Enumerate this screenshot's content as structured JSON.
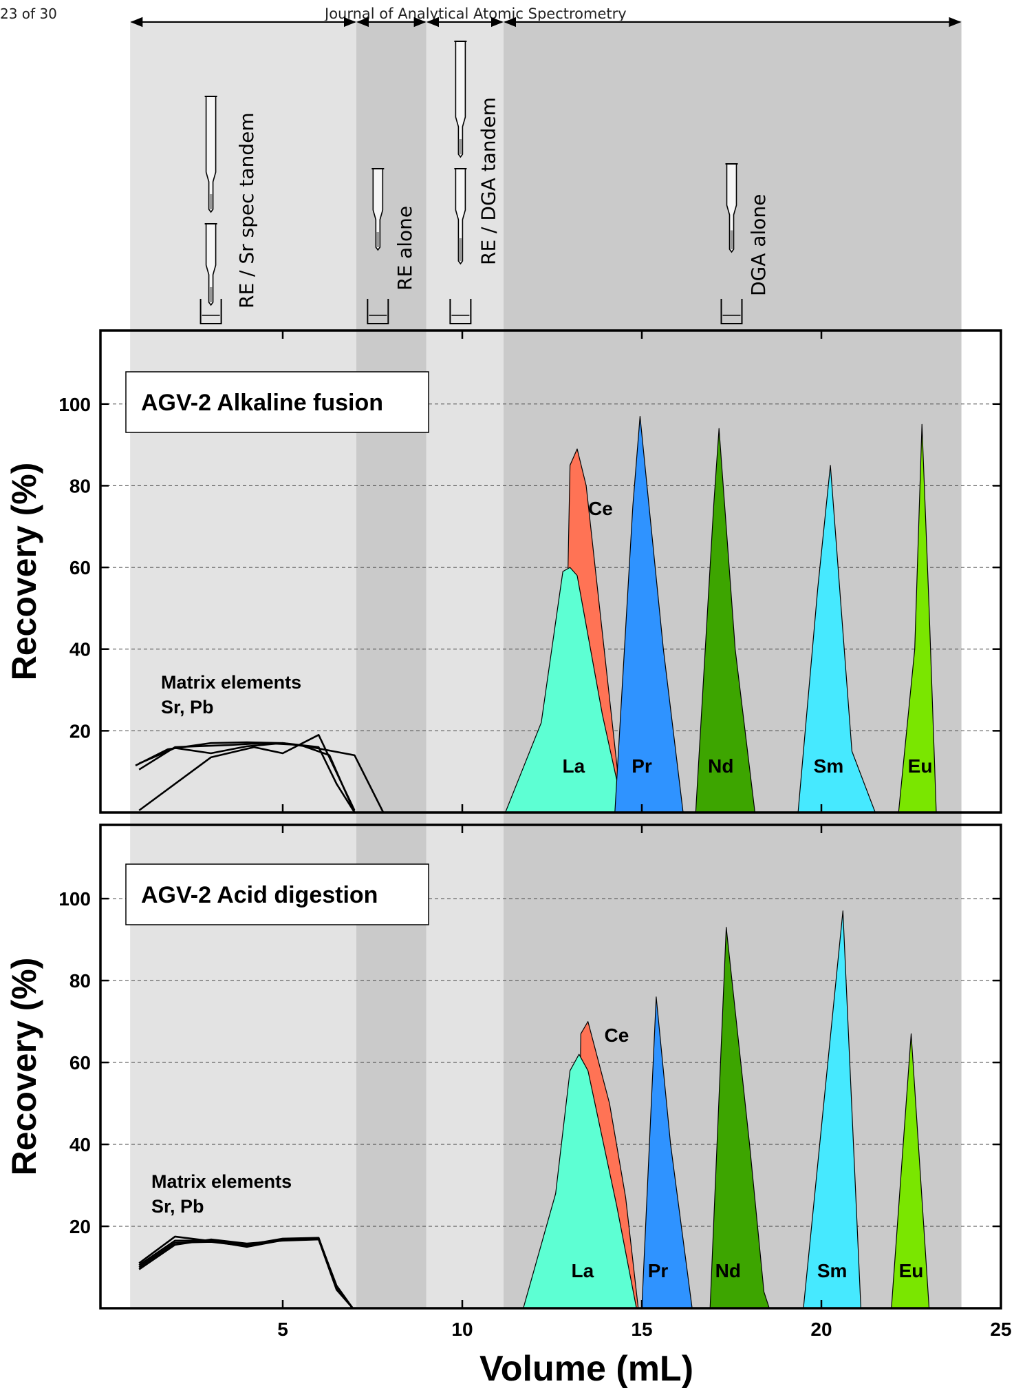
{
  "header": {
    "page_label": "23 of 30",
    "journal": "Journal of Analytical Atomic Spectrometry"
  },
  "colors": {
    "Ce": "#ff7355",
    "La": "#5dffd3",
    "Pr": "#2f93ff",
    "Nd": "#3da500",
    "Sm": "#46e9ff",
    "Eu": "#7ae600",
    "stage_RE_Sr_spec": "#e3e3e3",
    "stage_RE_alone": "#cacaca",
    "stage_RE_DGA": "#e3e3e3",
    "stage_DGA_alone": "#cacaca"
  },
  "stages": [
    {
      "label": "RE / Sr spec tandem",
      "start": 0.75,
      "end": 7.05,
      "columns": 2
    },
    {
      "label": "RE alone",
      "start": 7.05,
      "end": 9.0,
      "columns": 1
    },
    {
      "label": "RE / DGA tandem",
      "start": 9.0,
      "end": 11.15,
      "columns": 2
    },
    {
      "label": "DGA alone",
      "start": 11.15,
      "end": 23.9,
      "columns": 1
    }
  ],
  "chart_data": [
    {
      "type": "area",
      "title": "AGV-2 Alkaline fusion",
      "xlabel": "Volume (mL)",
      "ylabel": "Recovery (%)",
      "xlim": [
        0,
        25
      ],
      "ylim": [
        0,
        118
      ],
      "xticks": [
        5,
        10,
        15,
        20,
        25
      ],
      "yticks": [
        20,
        40,
        60,
        80,
        100
      ],
      "grid": true,
      "annotation": [
        "Matrix elements",
        "Sr, Pb"
      ],
      "series": [
        {
          "name": "Ce",
          "x": [
            12.5,
            12.9,
            13.0,
            13.2,
            13.45,
            14.45
          ],
          "y": [
            0,
            40,
            85,
            89,
            80,
            0
          ]
        },
        {
          "name": "La",
          "x": [
            11.2,
            12.2,
            12.8,
            13.0,
            13.2,
            13.9,
            14.5
          ],
          "y": [
            0,
            22,
            59,
            60,
            58,
            24,
            0
          ]
        },
        {
          "name": "Pr",
          "x": [
            14.25,
            14.75,
            14.95,
            15.6,
            16.15
          ],
          "y": [
            0,
            75,
            97,
            40,
            0
          ]
        },
        {
          "name": "Nd",
          "x": [
            16.5,
            17.0,
            17.15,
            17.6,
            18.15
          ],
          "y": [
            0,
            75,
            94,
            40,
            0
          ]
        },
        {
          "name": "Sm",
          "x": [
            19.35,
            19.9,
            20.25,
            20.85,
            21.5
          ],
          "y": [
            0,
            55,
            85,
            15,
            0
          ]
        },
        {
          "name": "Eu",
          "x": [
            22.15,
            22.6,
            22.8,
            23.0,
            23.2
          ],
          "y": [
            0,
            40,
            95,
            50,
            0
          ]
        },
        {
          "name": "Matrix 1",
          "x": [
            0.9,
            1.8,
            3.0,
            4.0,
            5.0,
            6.0,
            6.5,
            7.0
          ],
          "y": [
            11.5,
            15.5,
            17.0,
            17.2,
            17.0,
            16.0,
            7.0,
            0
          ]
        },
        {
          "name": "Matrix 2",
          "x": [
            1.0,
            2.0,
            3.0,
            4.0,
            5.0,
            5.8,
            7.0,
            7.8
          ],
          "y": [
            12.0,
            15.8,
            14.5,
            16.2,
            17.0,
            16.0,
            14.0,
            0
          ]
        },
        {
          "name": "Matrix 3",
          "x": [
            1.0,
            3.0,
            4.2,
            5.0,
            6.0,
            7.0
          ],
          "y": [
            0.5,
            13.5,
            16.0,
            14.5,
            19.0,
            0.5
          ]
        },
        {
          "name": "Matrix 4",
          "x": [
            1.0,
            2.0,
            3.5,
            4.5,
            5.5,
            6.3,
            7.0
          ],
          "y": [
            10.5,
            16.0,
            16.5,
            17.0,
            16.5,
            14.0,
            0
          ]
        }
      ]
    },
    {
      "type": "area",
      "title": "AGV-2 Acid digestion",
      "xlabel": "Volume (mL)",
      "ylabel": "Recovery (%)",
      "xlim": [
        0,
        25
      ],
      "ylim": [
        0,
        118
      ],
      "xticks": [
        5,
        10,
        15,
        20,
        25
      ],
      "yticks": [
        20,
        40,
        60,
        80,
        100
      ],
      "grid": true,
      "annotation": [
        "Matrix elements",
        "Sr, Pb"
      ],
      "series": [
        {
          "name": "Ce",
          "x": [
            13.2,
            13.3,
            13.5,
            14.1,
            14.55,
            14.9
          ],
          "y": [
            0,
            67,
            70,
            50,
            27,
            0
          ]
        },
        {
          "name": "La",
          "x": [
            11.7,
            12.6,
            13.0,
            13.25,
            13.5,
            14.3,
            14.85
          ],
          "y": [
            0,
            28,
            58,
            62,
            58,
            25,
            0
          ]
        },
        {
          "name": "Pr",
          "x": [
            15.0,
            15.4,
            15.8,
            16.4
          ],
          "y": [
            0,
            76,
            40,
            0
          ]
        },
        {
          "name": "Nd",
          "x": [
            16.9,
            17.35,
            18.0,
            18.4,
            18.55
          ],
          "y": [
            0,
            93,
            40,
            4,
            0
          ]
        },
        {
          "name": "Sm",
          "x": [
            19.5,
            20.6,
            21.1
          ],
          "y": [
            0,
            97,
            0
          ]
        },
        {
          "name": "Eu",
          "x": [
            21.95,
            22.5,
            23.0
          ],
          "y": [
            0,
            67,
            0
          ]
        },
        {
          "name": "Matrix 1",
          "x": [
            1.0,
            2.0,
            3.0,
            4.0,
            5.0,
            6.0,
            6.5,
            6.95
          ],
          "y": [
            10.5,
            16.5,
            16.5,
            15.5,
            17.0,
            17.2,
            5.0,
            0
          ]
        },
        {
          "name": "Matrix 2",
          "x": [
            1.0,
            2.0,
            3.0,
            4.0,
            5.0,
            6.0,
            6.5,
            6.95
          ],
          "y": [
            10.0,
            16.0,
            16.2,
            15.2,
            16.8,
            17.0,
            5.5,
            0
          ]
        },
        {
          "name": "Matrix 3",
          "x": [
            1.0,
            2.0,
            3.0,
            4.0,
            5.0,
            6.0,
            6.5,
            6.95
          ],
          "y": [
            9.5,
            15.5,
            16.8,
            15.8,
            16.5,
            16.8,
            4.5,
            0
          ]
        },
        {
          "name": "Matrix 4",
          "x": [
            1.0,
            2.0,
            3.0,
            4.0,
            5.0,
            6.0,
            6.5,
            6.95
          ],
          "y": [
            11.0,
            17.5,
            16.4,
            15.0,
            16.6,
            17.1,
            5.2,
            0
          ]
        }
      ]
    }
  ]
}
